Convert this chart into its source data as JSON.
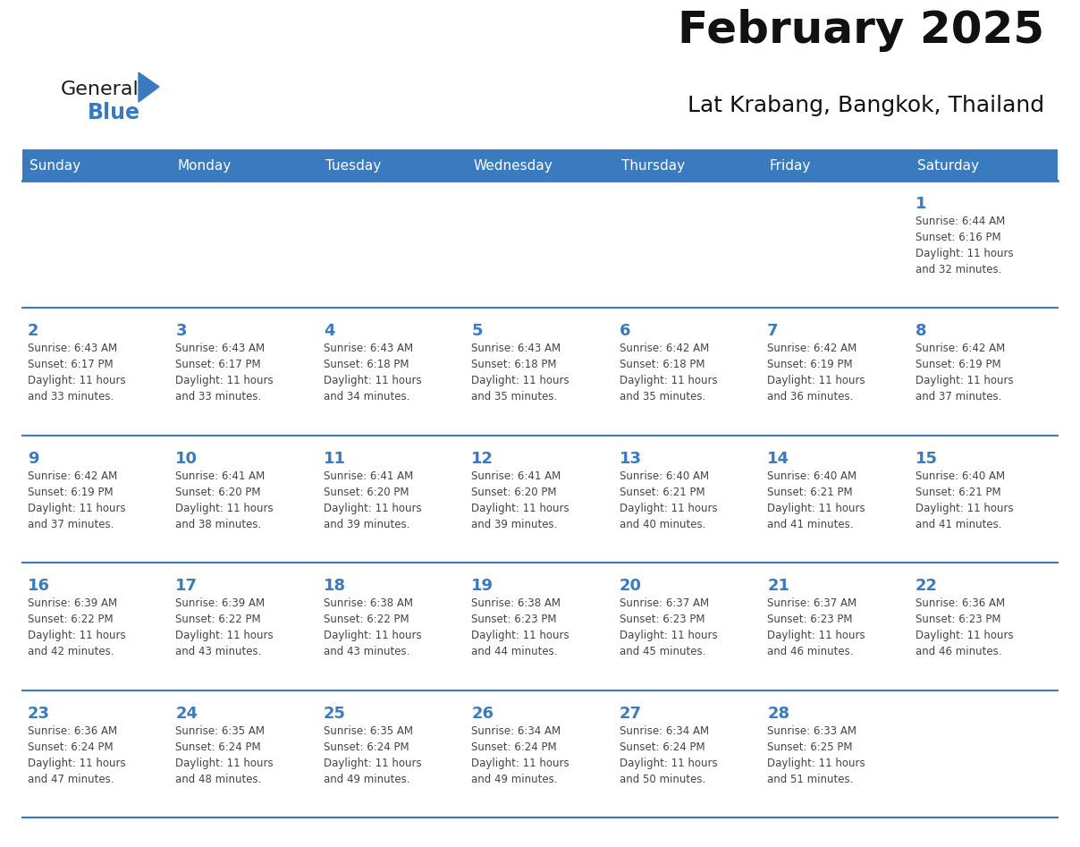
{
  "title": "February 2025",
  "subtitle": "Lat Krabang, Bangkok, Thailand",
  "header_bg": "#3a7abf",
  "header_text_color": "#FFFFFF",
  "cell_bg": "#FFFFFF",
  "cell_border_color": "#3a7abf",
  "day_number_color": "#3a7abf",
  "info_text_color": "#444444",
  "bg_color": "#FFFFFF",
  "days_of_week": [
    "Sunday",
    "Monday",
    "Tuesday",
    "Wednesday",
    "Thursday",
    "Friday",
    "Saturday"
  ],
  "weeks": [
    [
      {
        "day": "",
        "info": ""
      },
      {
        "day": "",
        "info": ""
      },
      {
        "day": "",
        "info": ""
      },
      {
        "day": "",
        "info": ""
      },
      {
        "day": "",
        "info": ""
      },
      {
        "day": "",
        "info": ""
      },
      {
        "day": "1",
        "info": "Sunrise: 6:44 AM\nSunset: 6:16 PM\nDaylight: 11 hours\nand 32 minutes."
      }
    ],
    [
      {
        "day": "2",
        "info": "Sunrise: 6:43 AM\nSunset: 6:17 PM\nDaylight: 11 hours\nand 33 minutes."
      },
      {
        "day": "3",
        "info": "Sunrise: 6:43 AM\nSunset: 6:17 PM\nDaylight: 11 hours\nand 33 minutes."
      },
      {
        "day": "4",
        "info": "Sunrise: 6:43 AM\nSunset: 6:18 PM\nDaylight: 11 hours\nand 34 minutes."
      },
      {
        "day": "5",
        "info": "Sunrise: 6:43 AM\nSunset: 6:18 PM\nDaylight: 11 hours\nand 35 minutes."
      },
      {
        "day": "6",
        "info": "Sunrise: 6:42 AM\nSunset: 6:18 PM\nDaylight: 11 hours\nand 35 minutes."
      },
      {
        "day": "7",
        "info": "Sunrise: 6:42 AM\nSunset: 6:19 PM\nDaylight: 11 hours\nand 36 minutes."
      },
      {
        "day": "8",
        "info": "Sunrise: 6:42 AM\nSunset: 6:19 PM\nDaylight: 11 hours\nand 37 minutes."
      }
    ],
    [
      {
        "day": "9",
        "info": "Sunrise: 6:42 AM\nSunset: 6:19 PM\nDaylight: 11 hours\nand 37 minutes."
      },
      {
        "day": "10",
        "info": "Sunrise: 6:41 AM\nSunset: 6:20 PM\nDaylight: 11 hours\nand 38 minutes."
      },
      {
        "day": "11",
        "info": "Sunrise: 6:41 AM\nSunset: 6:20 PM\nDaylight: 11 hours\nand 39 minutes."
      },
      {
        "day": "12",
        "info": "Sunrise: 6:41 AM\nSunset: 6:20 PM\nDaylight: 11 hours\nand 39 minutes."
      },
      {
        "day": "13",
        "info": "Sunrise: 6:40 AM\nSunset: 6:21 PM\nDaylight: 11 hours\nand 40 minutes."
      },
      {
        "day": "14",
        "info": "Sunrise: 6:40 AM\nSunset: 6:21 PM\nDaylight: 11 hours\nand 41 minutes."
      },
      {
        "day": "15",
        "info": "Sunrise: 6:40 AM\nSunset: 6:21 PM\nDaylight: 11 hours\nand 41 minutes."
      }
    ],
    [
      {
        "day": "16",
        "info": "Sunrise: 6:39 AM\nSunset: 6:22 PM\nDaylight: 11 hours\nand 42 minutes."
      },
      {
        "day": "17",
        "info": "Sunrise: 6:39 AM\nSunset: 6:22 PM\nDaylight: 11 hours\nand 43 minutes."
      },
      {
        "day": "18",
        "info": "Sunrise: 6:38 AM\nSunset: 6:22 PM\nDaylight: 11 hours\nand 43 minutes."
      },
      {
        "day": "19",
        "info": "Sunrise: 6:38 AM\nSunset: 6:23 PM\nDaylight: 11 hours\nand 44 minutes."
      },
      {
        "day": "20",
        "info": "Sunrise: 6:37 AM\nSunset: 6:23 PM\nDaylight: 11 hours\nand 45 minutes."
      },
      {
        "day": "21",
        "info": "Sunrise: 6:37 AM\nSunset: 6:23 PM\nDaylight: 11 hours\nand 46 minutes."
      },
      {
        "day": "22",
        "info": "Sunrise: 6:36 AM\nSunset: 6:23 PM\nDaylight: 11 hours\nand 46 minutes."
      }
    ],
    [
      {
        "day": "23",
        "info": "Sunrise: 6:36 AM\nSunset: 6:24 PM\nDaylight: 11 hours\nand 47 minutes."
      },
      {
        "day": "24",
        "info": "Sunrise: 6:35 AM\nSunset: 6:24 PM\nDaylight: 11 hours\nand 48 minutes."
      },
      {
        "day": "25",
        "info": "Sunrise: 6:35 AM\nSunset: 6:24 PM\nDaylight: 11 hours\nand 49 minutes."
      },
      {
        "day": "26",
        "info": "Sunrise: 6:34 AM\nSunset: 6:24 PM\nDaylight: 11 hours\nand 49 minutes."
      },
      {
        "day": "27",
        "info": "Sunrise: 6:34 AM\nSunset: 6:24 PM\nDaylight: 11 hours\nand 50 minutes."
      },
      {
        "day": "28",
        "info": "Sunrise: 6:33 AM\nSunset: 6:25 PM\nDaylight: 11 hours\nand 51 minutes."
      },
      {
        "day": "",
        "info": ""
      }
    ]
  ],
  "logo_general_color": "#1a1a1a",
  "logo_blue_color": "#3a7abf",
  "logo_triangle_color": "#3a7abf",
  "title_fontsize": 36,
  "subtitle_fontsize": 18,
  "header_fontsize": 11,
  "day_num_fontsize": 13,
  "info_fontsize": 8.5
}
